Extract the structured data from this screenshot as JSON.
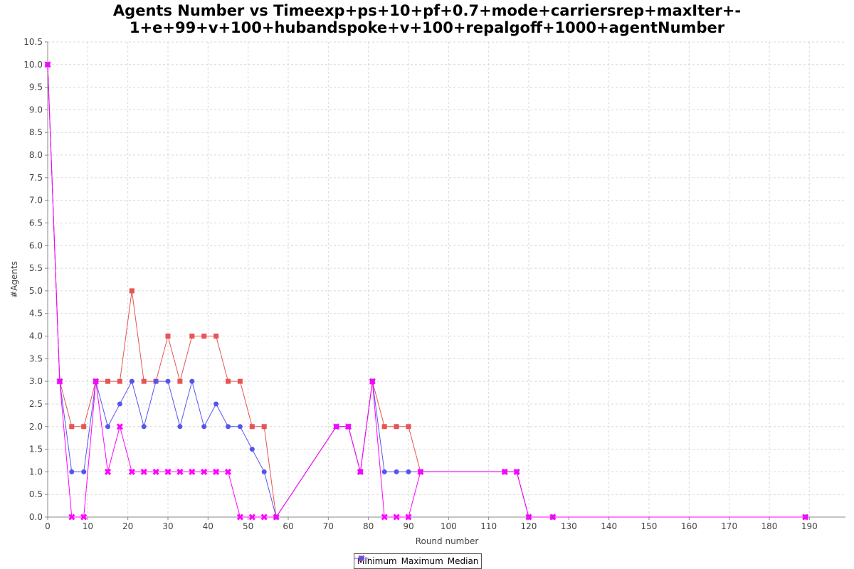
{
  "chart_data": {
    "type": "line",
    "title_line_1": "Agents Number vs Timeexp+ps+10+pf+0.7+mode+carriersrep+maxIter+-",
    "title_line_2": "1+e+99+v+100+hubandspoke+v+100+repalgoff+1000+agentNumber",
    "xlabel": "Round number",
    "ylabel": "#Agents",
    "xlim": [
      0,
      199
    ],
    "ylim": [
      0,
      10.5
    ],
    "x_ticks": [
      0,
      10,
      20,
      30,
      40,
      50,
      60,
      70,
      80,
      90,
      100,
      110,
      120,
      130,
      140,
      150,
      160,
      170,
      180,
      190
    ],
    "y_ticks": [
      "0.0",
      "0.5",
      "1.0",
      "1.5",
      "2.0",
      "2.5",
      "3.0",
      "3.5",
      "4.0",
      "4.5",
      "5.0",
      "5.5",
      "6.0",
      "6.5",
      "7.0",
      "7.5",
      "8.0",
      "8.5",
      "9.0",
      "9.5",
      "10.0",
      "10.5"
    ],
    "grid": true,
    "legend_position": "bottom-center",
    "series": [
      {
        "name": "Minimum",
        "color": "#ff00ff",
        "marker": "x",
        "points": [
          [
            0,
            10
          ],
          [
            3,
            3
          ],
          [
            6,
            0
          ],
          [
            9,
            0
          ],
          [
            12,
            3
          ],
          [
            15,
            1
          ],
          [
            18,
            2
          ],
          [
            21,
            1
          ],
          [
            24,
            1
          ],
          [
            27,
            1
          ],
          [
            30,
            1
          ],
          [
            33,
            1
          ],
          [
            36,
            1
          ],
          [
            39,
            1
          ],
          [
            42,
            1
          ],
          [
            45,
            1
          ],
          [
            48,
            0
          ],
          [
            51,
            0
          ],
          [
            54,
            0
          ],
          [
            57,
            0
          ],
          [
            72,
            2
          ],
          [
            75,
            2
          ],
          [
            78,
            1
          ],
          [
            81,
            3
          ],
          [
            84,
            0
          ],
          [
            87,
            0
          ],
          [
            90,
            0
          ],
          [
            93,
            1
          ],
          [
            114,
            1
          ],
          [
            117,
            1
          ],
          [
            120,
            0
          ],
          [
            126,
            0
          ],
          [
            189,
            0
          ]
        ]
      },
      {
        "name": "Maximum",
        "color": "#e65454",
        "marker": "square",
        "points": [
          [
            0,
            10
          ],
          [
            3,
            3
          ],
          [
            6,
            2
          ],
          [
            9,
            2
          ],
          [
            12,
            3
          ],
          [
            15,
            3
          ],
          [
            18,
            3
          ],
          [
            21,
            5
          ],
          [
            24,
            3
          ],
          [
            27,
            3
          ],
          [
            30,
            4
          ],
          [
            33,
            3
          ],
          [
            36,
            4
          ],
          [
            39,
            4
          ],
          [
            42,
            4
          ],
          [
            45,
            3
          ],
          [
            48,
            3
          ],
          [
            51,
            2
          ],
          [
            54,
            2
          ],
          [
            57,
            0
          ],
          [
            72,
            2
          ],
          [
            75,
            2
          ],
          [
            78,
            1
          ],
          [
            81,
            3
          ],
          [
            84,
            2
          ],
          [
            87,
            2
          ],
          [
            90,
            2
          ],
          [
            93,
            1
          ],
          [
            114,
            1
          ],
          [
            117,
            1
          ],
          [
            120,
            0
          ],
          [
            126,
            0
          ],
          [
            189,
            0
          ]
        ]
      },
      {
        "name": "Median",
        "color": "#5555ee",
        "marker": "circle",
        "points": [
          [
            0,
            10
          ],
          [
            3,
            3
          ],
          [
            6,
            1
          ],
          [
            9,
            1
          ],
          [
            12,
            3
          ],
          [
            15,
            2
          ],
          [
            18,
            2.5
          ],
          [
            21,
            3
          ],
          [
            24,
            2
          ],
          [
            27,
            3
          ],
          [
            30,
            3
          ],
          [
            33,
            2
          ],
          [
            36,
            3
          ],
          [
            39,
            2
          ],
          [
            42,
            2.5
          ],
          [
            45,
            2
          ],
          [
            48,
            2
          ],
          [
            51,
            1.5
          ],
          [
            54,
            1
          ],
          [
            57,
            0
          ],
          [
            72,
            2
          ],
          [
            75,
            2
          ],
          [
            78,
            1
          ],
          [
            81,
            3
          ],
          [
            84,
            1
          ],
          [
            87,
            1
          ],
          [
            90,
            1
          ],
          [
            93,
            1
          ],
          [
            114,
            1
          ],
          [
            117,
            1
          ],
          [
            120,
            0
          ],
          [
            126,
            0
          ],
          [
            189,
            0
          ]
        ]
      }
    ]
  }
}
